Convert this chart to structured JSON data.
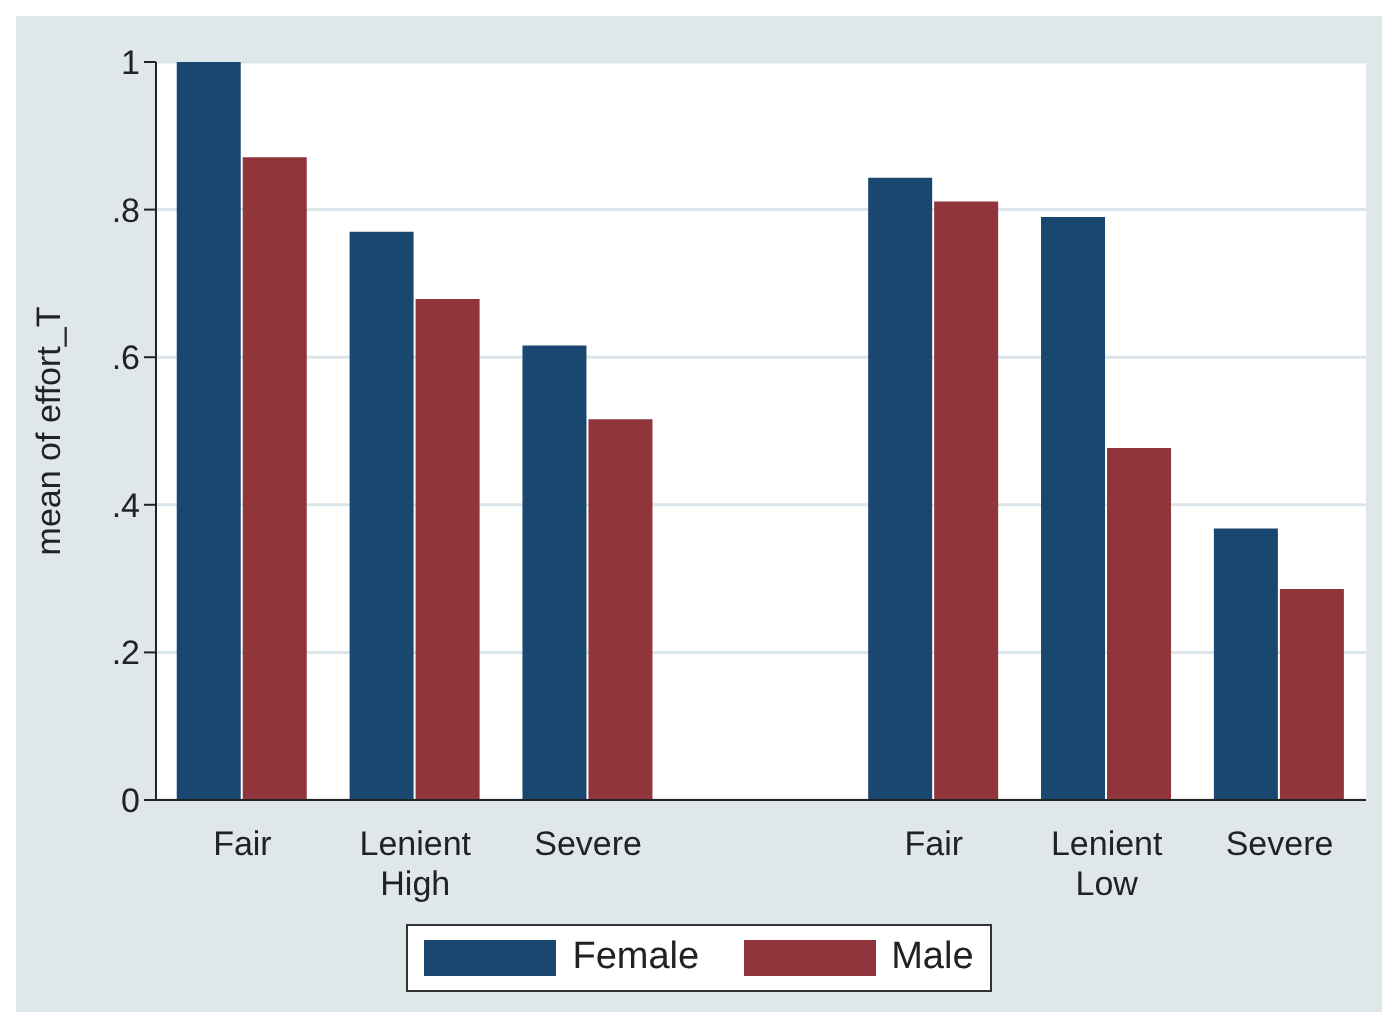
{
  "chart_data": {
    "type": "bar",
    "ylabel": "mean of effort_T",
    "categories": [
      "Fair",
      "Lenient High",
      "Severe",
      null,
      "Fair",
      "Lenient Low",
      "Severe"
    ],
    "series": [
      {
        "name": "Female",
        "color": "#1a476f",
        "values": [
          1.0,
          0.77,
          0.616,
          null,
          0.843,
          0.79,
          0.368
        ]
      },
      {
        "name": "Male",
        "color": "#90353b",
        "values": [
          0.871,
          0.679,
          0.516,
          null,
          0.811,
          0.477,
          0.286
        ]
      }
    ],
    "ylim": [
      0,
      1
    ],
    "yticks": [
      0,
      {
        "value": 0.2,
        "label": ".2"
      },
      {
        "value": 0.4,
        "label": ".4"
      },
      {
        "value": 0.6,
        "label": ".6"
      },
      {
        "value": 0.8,
        "label": ".8"
      },
      1
    ],
    "grid": "y",
    "legend": "bottom"
  }
}
